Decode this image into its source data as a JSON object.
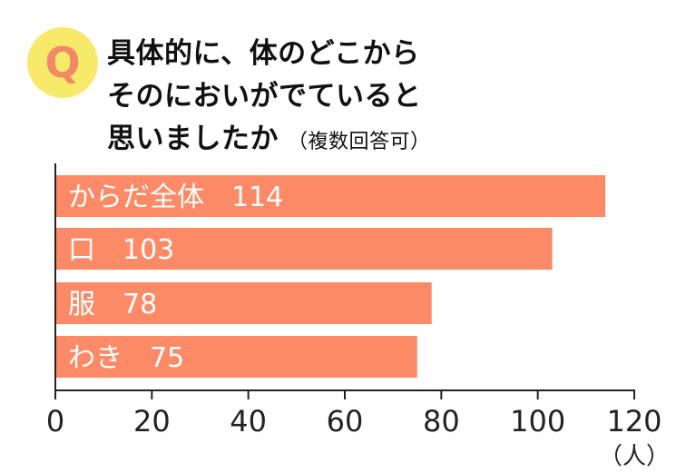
{
  "question": {
    "badge": "Q",
    "title_lines": [
      "具体的に、体のどこから",
      "そのにおいがでていると",
      "思いましたか"
    ],
    "note": "（複数回答可）"
  },
  "chart_data": {
    "type": "bar",
    "orientation": "horizontal",
    "categories": [
      "からだ全体",
      "口",
      "服",
      "わき"
    ],
    "values": [
      114,
      103,
      78,
      75
    ],
    "bar_labels": [
      "からだ全体　114",
      "口　103",
      "服　78",
      "わき　75"
    ],
    "xlim": [
      0,
      120
    ],
    "xticks": [
      0,
      20,
      40,
      60,
      80,
      100,
      120
    ],
    "unit": "（人）",
    "grid": false,
    "bar_color": "#fd8a66",
    "label_color": "#ffffff"
  }
}
